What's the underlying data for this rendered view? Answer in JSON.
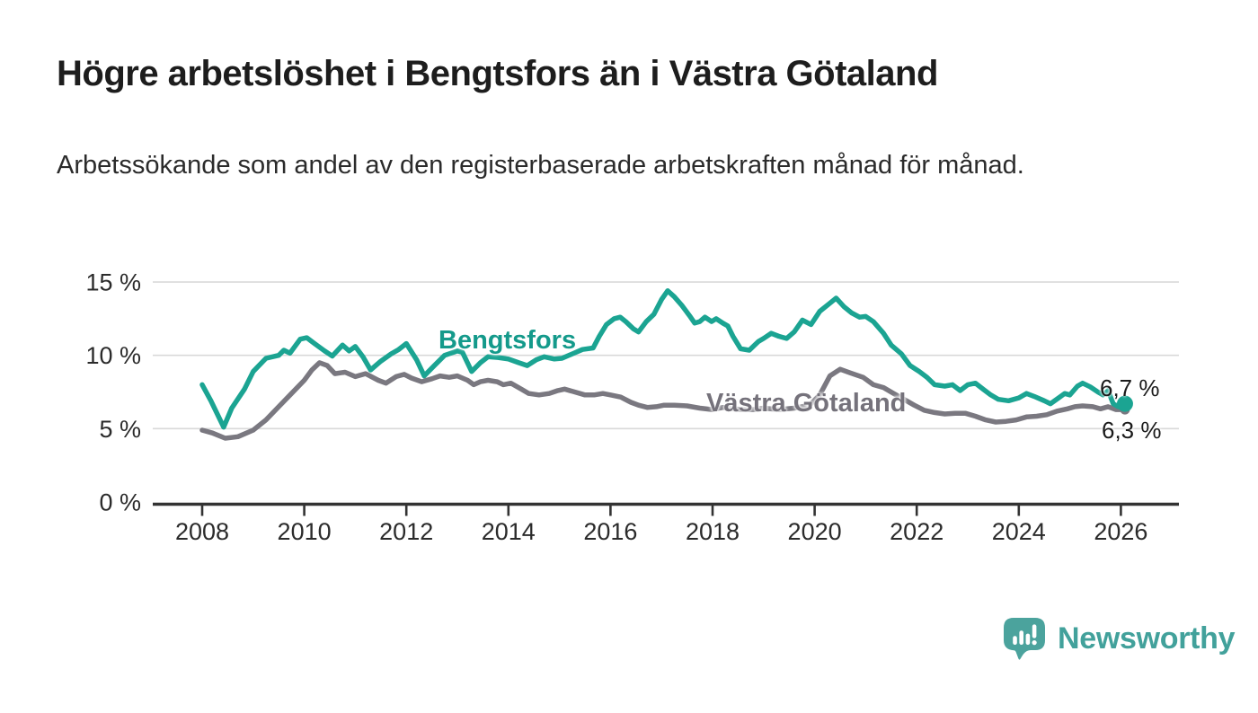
{
  "header": {
    "title": "Högre arbetslöshet i Bengtsfors än i Västra Götaland",
    "subtitle": "Arbetssökande som andel av den registerbaserade arbetskraften månad för månad."
  },
  "footer": {
    "brand": "Newsworthy"
  },
  "icons": {
    "brand_logo": "speech-bubble-bar-chart-icon"
  },
  "colors": {
    "accent_teal": "#1ba492",
    "label_teal": "#149a8b",
    "line_gray": "#7a7880",
    "label_gray": "#75727b",
    "axis": "#333333",
    "gridline": "#d9d9d9",
    "tick_text": "#2b2b2b",
    "brand_teal": "#42a19b",
    "text_dark": "#1d1d1d"
  },
  "chart_data": {
    "type": "line",
    "title": "Högre arbetslöshet i Bengtsfors än i Västra Götaland",
    "subtitle": "Arbetssökande som andel av den registerbaserade arbetskraften månad för månad.",
    "unit": "%",
    "xlabel": "",
    "ylabel": "",
    "ylim": [
      0,
      15
    ],
    "xlim": [
      2007.0,
      2027.1
    ],
    "grid": "horizontal",
    "legend_position": "inline-labels",
    "y_ticks": [
      {
        "value": 0,
        "label": "0 %"
      },
      {
        "value": 5,
        "label": "5 %"
      },
      {
        "value": 10,
        "label": "10 %"
      },
      {
        "value": 15,
        "label": "15 %"
      }
    ],
    "x_ticks": [
      {
        "value": 2008,
        "label": "2008"
      },
      {
        "value": 2010,
        "label": "2010"
      },
      {
        "value": 2012,
        "label": "2012"
      },
      {
        "value": 2014,
        "label": "2014"
      },
      {
        "value": 2016,
        "label": "2016"
      },
      {
        "value": 2018,
        "label": "2018"
      },
      {
        "value": 2020,
        "label": "2020"
      },
      {
        "value": 2022,
        "label": "2022"
      },
      {
        "value": 2024,
        "label": "2024"
      },
      {
        "value": 2026,
        "label": "2026"
      }
    ],
    "series": [
      {
        "name": "Västra Götaland",
        "color": "#7a7880",
        "end_label": "6,3 %",
        "end_value": 6.3,
        "end_dot_radius": 5.5,
        "points": [
          [
            2008.0,
            4.9
          ],
          [
            2008.2,
            4.7
          ],
          [
            2008.45,
            4.35
          ],
          [
            2008.7,
            4.45
          ],
          [
            2009.0,
            4.9
          ],
          [
            2009.25,
            5.6
          ],
          [
            2009.5,
            6.5
          ],
          [
            2009.75,
            7.4
          ],
          [
            2010.0,
            8.3
          ],
          [
            2010.15,
            9.0
          ],
          [
            2010.3,
            9.5
          ],
          [
            2010.45,
            9.3
          ],
          [
            2010.6,
            8.75
          ],
          [
            2010.8,
            8.85
          ],
          [
            2011.0,
            8.55
          ],
          [
            2011.2,
            8.75
          ],
          [
            2011.45,
            8.3
          ],
          [
            2011.6,
            8.1
          ],
          [
            2011.8,
            8.55
          ],
          [
            2011.96,
            8.7
          ],
          [
            2012.1,
            8.45
          ],
          [
            2012.3,
            8.2
          ],
          [
            2012.5,
            8.4
          ],
          [
            2012.66,
            8.6
          ],
          [
            2012.84,
            8.5
          ],
          [
            2013.0,
            8.6
          ],
          [
            2013.2,
            8.3
          ],
          [
            2013.32,
            8.0
          ],
          [
            2013.45,
            8.2
          ],
          [
            2013.6,
            8.3
          ],
          [
            2013.78,
            8.2
          ],
          [
            2013.9,
            8.0
          ],
          [
            2014.05,
            8.1
          ],
          [
            2014.25,
            7.7
          ],
          [
            2014.4,
            7.4
          ],
          [
            2014.6,
            7.3
          ],
          [
            2014.8,
            7.4
          ],
          [
            2014.97,
            7.6
          ],
          [
            2015.1,
            7.7
          ],
          [
            2015.3,
            7.5
          ],
          [
            2015.5,
            7.3
          ],
          [
            2015.68,
            7.3
          ],
          [
            2015.85,
            7.4
          ],
          [
            2016.0,
            7.3
          ],
          [
            2016.2,
            7.15
          ],
          [
            2016.4,
            6.8
          ],
          [
            2016.55,
            6.6
          ],
          [
            2016.72,
            6.45
          ],
          [
            2016.9,
            6.5
          ],
          [
            2017.05,
            6.6
          ],
          [
            2017.25,
            6.6
          ],
          [
            2017.5,
            6.55
          ],
          [
            2017.75,
            6.4
          ],
          [
            2018.0,
            6.3
          ],
          [
            2018.2,
            6.45
          ],
          [
            2018.4,
            6.35
          ],
          [
            2018.6,
            6.3
          ],
          [
            2018.8,
            6.3
          ],
          [
            2019.0,
            6.4
          ],
          [
            2019.3,
            6.3
          ],
          [
            2019.6,
            6.4
          ],
          [
            2019.9,
            6.6
          ],
          [
            2020.1,
            7.3
          ],
          [
            2020.3,
            8.6
          ],
          [
            2020.5,
            9.05
          ],
          [
            2020.7,
            8.8
          ],
          [
            2020.95,
            8.5
          ],
          [
            2021.15,
            8.0
          ],
          [
            2021.35,
            7.8
          ],
          [
            2021.55,
            7.4
          ],
          [
            2021.75,
            7.0
          ],
          [
            2021.95,
            6.6
          ],
          [
            2022.15,
            6.25
          ],
          [
            2022.35,
            6.1
          ],
          [
            2022.55,
            6.0
          ],
          [
            2022.75,
            6.05
          ],
          [
            2022.95,
            6.05
          ],
          [
            2023.15,
            5.85
          ],
          [
            2023.35,
            5.6
          ],
          [
            2023.55,
            5.45
          ],
          [
            2023.75,
            5.5
          ],
          [
            2023.95,
            5.6
          ],
          [
            2024.15,
            5.8
          ],
          [
            2024.35,
            5.85
          ],
          [
            2024.55,
            5.95
          ],
          [
            2024.75,
            6.2
          ],
          [
            2024.95,
            6.35
          ],
          [
            2025.1,
            6.5
          ],
          [
            2025.25,
            6.55
          ],
          [
            2025.45,
            6.5
          ],
          [
            2025.6,
            6.35
          ],
          [
            2025.75,
            6.5
          ],
          [
            2025.9,
            6.3
          ],
          [
            2026.08,
            6.3
          ]
        ]
      },
      {
        "name": "Bengtsfors",
        "color": "#1ba492",
        "end_label": "6,7 %",
        "end_value": 6.7,
        "end_dot_radius": 9,
        "points": [
          [
            2008.0,
            8.0
          ],
          [
            2008.17,
            6.9
          ],
          [
            2008.42,
            5.1
          ],
          [
            2008.58,
            6.4
          ],
          [
            2008.83,
            7.7
          ],
          [
            2009.0,
            8.9
          ],
          [
            2009.25,
            9.8
          ],
          [
            2009.5,
            10.0
          ],
          [
            2009.6,
            10.35
          ],
          [
            2009.72,
            10.15
          ],
          [
            2009.92,
            11.1
          ],
          [
            2010.05,
            11.2
          ],
          [
            2010.2,
            10.8
          ],
          [
            2010.4,
            10.3
          ],
          [
            2010.55,
            9.95
          ],
          [
            2010.75,
            10.7
          ],
          [
            2010.88,
            10.3
          ],
          [
            2011.0,
            10.6
          ],
          [
            2011.15,
            9.9
          ],
          [
            2011.3,
            9.0
          ],
          [
            2011.5,
            9.6
          ],
          [
            2011.7,
            10.1
          ],
          [
            2011.85,
            10.4
          ],
          [
            2012.0,
            10.8
          ],
          [
            2012.2,
            9.7
          ],
          [
            2012.35,
            8.6
          ],
          [
            2012.55,
            9.3
          ],
          [
            2012.75,
            10.0
          ],
          [
            2013.0,
            10.3
          ],
          [
            2013.1,
            10.2
          ],
          [
            2013.28,
            8.9
          ],
          [
            2013.45,
            9.5
          ],
          [
            2013.6,
            9.9
          ],
          [
            2013.8,
            9.85
          ],
          [
            2014.0,
            9.75
          ],
          [
            2014.2,
            9.5
          ],
          [
            2014.37,
            9.3
          ],
          [
            2014.55,
            9.7
          ],
          [
            2014.7,
            9.9
          ],
          [
            2014.9,
            9.75
          ],
          [
            2015.05,
            9.8
          ],
          [
            2015.25,
            10.1
          ],
          [
            2015.45,
            10.4
          ],
          [
            2015.66,
            10.5
          ],
          [
            2015.78,
            11.3
          ],
          [
            2015.92,
            12.1
          ],
          [
            2016.07,
            12.5
          ],
          [
            2016.19,
            12.6
          ],
          [
            2016.3,
            12.3
          ],
          [
            2016.45,
            11.8
          ],
          [
            2016.55,
            11.6
          ],
          [
            2016.7,
            12.3
          ],
          [
            2016.85,
            12.8
          ],
          [
            2017.0,
            13.8
          ],
          [
            2017.12,
            14.4
          ],
          [
            2017.25,
            14.0
          ],
          [
            2017.4,
            13.4
          ],
          [
            2017.55,
            12.7
          ],
          [
            2017.65,
            12.2
          ],
          [
            2017.75,
            12.3
          ],
          [
            2017.85,
            12.6
          ],
          [
            2017.98,
            12.3
          ],
          [
            2018.07,
            12.5
          ],
          [
            2018.2,
            12.2
          ],
          [
            2018.3,
            12.0
          ],
          [
            2018.4,
            11.3
          ],
          [
            2018.55,
            10.45
          ],
          [
            2018.72,
            10.35
          ],
          [
            2018.9,
            10.95
          ],
          [
            2019.0,
            11.15
          ],
          [
            2019.15,
            11.5
          ],
          [
            2019.3,
            11.3
          ],
          [
            2019.45,
            11.15
          ],
          [
            2019.6,
            11.6
          ],
          [
            2019.76,
            12.4
          ],
          [
            2019.93,
            12.1
          ],
          [
            2020.1,
            13.0
          ],
          [
            2020.28,
            13.5
          ],
          [
            2020.42,
            13.9
          ],
          [
            2020.58,
            13.3
          ],
          [
            2020.72,
            12.9
          ],
          [
            2020.88,
            12.6
          ],
          [
            2021.0,
            12.65
          ],
          [
            2021.15,
            12.3
          ],
          [
            2021.35,
            11.5
          ],
          [
            2021.5,
            10.7
          ],
          [
            2021.7,
            10.1
          ],
          [
            2021.87,
            9.3
          ],
          [
            2022.05,
            8.9
          ],
          [
            2022.2,
            8.5
          ],
          [
            2022.35,
            8.0
          ],
          [
            2022.55,
            7.9
          ],
          [
            2022.7,
            8.0
          ],
          [
            2022.85,
            7.6
          ],
          [
            2023.0,
            8.0
          ],
          [
            2023.15,
            8.1
          ],
          [
            2023.3,
            7.7
          ],
          [
            2023.45,
            7.3
          ],
          [
            2023.6,
            7.0
          ],
          [
            2023.8,
            6.9
          ],
          [
            2024.0,
            7.1
          ],
          [
            2024.15,
            7.4
          ],
          [
            2024.3,
            7.2
          ],
          [
            2024.5,
            6.9
          ],
          [
            2024.62,
            6.7
          ],
          [
            2024.78,
            7.1
          ],
          [
            2024.9,
            7.4
          ],
          [
            2025.0,
            7.3
          ],
          [
            2025.15,
            7.9
          ],
          [
            2025.25,
            8.1
          ],
          [
            2025.4,
            7.85
          ],
          [
            2025.55,
            7.5
          ],
          [
            2025.65,
            7.3
          ],
          [
            2025.75,
            7.6
          ],
          [
            2025.85,
            6.7
          ],
          [
            2025.95,
            6.5
          ],
          [
            2026.08,
            6.7
          ]
        ]
      }
    ]
  }
}
